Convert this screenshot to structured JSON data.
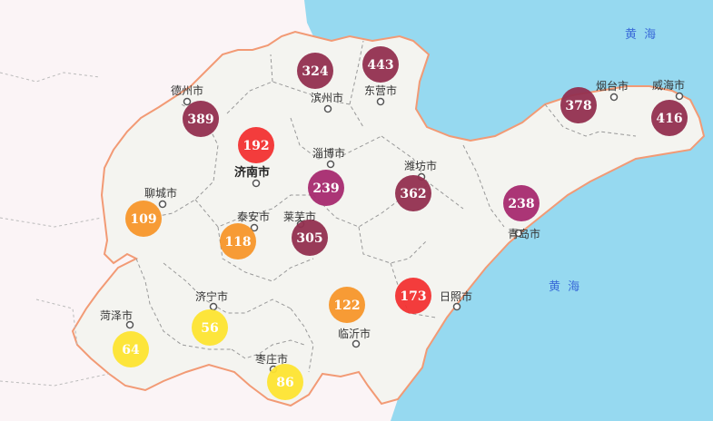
{
  "map": {
    "colors": {
      "sea": "#96d9f0",
      "land": "#f4f4f0",
      "outside": "#fbf4f6",
      "border": "#f29a75"
    },
    "sea_labels": [
      {
        "text": "黄 海",
        "name": "sea-label-north"
      },
      {
        "text": "黄 海",
        "name": "sea-label-south"
      }
    ],
    "cities": [
      {
        "id": "dezhou",
        "name": "德州市",
        "aqi": 389,
        "color": "#922f4f"
      },
      {
        "id": "binzhou",
        "name": "滨州市",
        "aqi": 324,
        "color": "#922f4f"
      },
      {
        "id": "dongying",
        "name": "东营市",
        "aqi": 443,
        "color": "#922f4f"
      },
      {
        "id": "yantai",
        "name": "烟台市",
        "aqi": 378,
        "color": "#922f4f"
      },
      {
        "id": "weihai",
        "name": "威海市",
        "aqi": 416,
        "color": "#922f4f"
      },
      {
        "id": "jinan",
        "name": "济南市",
        "aqi": 192,
        "color": "#f23131"
      },
      {
        "id": "zibo",
        "name": "淄博市",
        "aqi": 239,
        "color": "#a62a6f"
      },
      {
        "id": "weifang",
        "name": "潍坊市",
        "aqi": 362,
        "color": "#922f4f"
      },
      {
        "id": "qingdao",
        "name": "青岛市",
        "aqi": 238,
        "color": "#a62a6f"
      },
      {
        "id": "liaocheng",
        "name": "聊城市",
        "aqi": 109,
        "color": "#f7962a"
      },
      {
        "id": "taian",
        "name": "泰安市",
        "aqi": 118,
        "color": "#f7962a"
      },
      {
        "id": "laiwu",
        "name": "莱芜市",
        "aqi": 305,
        "color": "#922f4f"
      },
      {
        "id": "rizhao",
        "name": "日照市",
        "aqi": 173,
        "color": "#f23131"
      },
      {
        "id": "linyi",
        "name": "临沂市",
        "aqi": 122,
        "color": "#f7962a"
      },
      {
        "id": "jining",
        "name": "济宁市",
        "aqi": 56,
        "color": "#fde430"
      },
      {
        "id": "heze",
        "name": "菏泽市",
        "aqi": 64,
        "color": "#fde430"
      },
      {
        "id": "zaozhuang",
        "name": "枣庄市",
        "aqi": 86,
        "color": "#fde430"
      }
    ]
  }
}
